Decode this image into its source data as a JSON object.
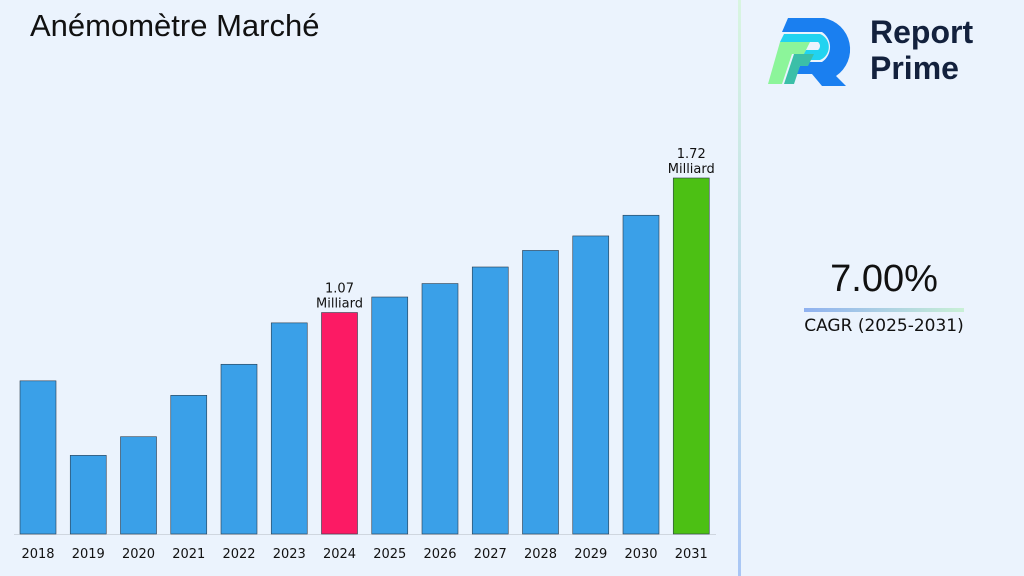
{
  "title": "Anémomètre Marché",
  "logo": {
    "line1": "Report",
    "line2": "Prime"
  },
  "cagr": {
    "value": "7.00%",
    "label": "CAGR (2025-2031)"
  },
  "colors": {
    "default_bar": "#3aa0e8",
    "highlight_2024": "#fc1a64",
    "highlight_2031": "#4cc014",
    "background": "#ebf3fd"
  },
  "chart_data": {
    "type": "bar",
    "title": "Anémomètre Marché",
    "xlabel": "",
    "ylabel": "",
    "categories": [
      "2018",
      "2019",
      "2020",
      "2021",
      "2022",
      "2023",
      "2024",
      "2025",
      "2026",
      "2027",
      "2028",
      "2029",
      "2030",
      "2031"
    ],
    "values": [
      0.74,
      0.38,
      0.47,
      0.67,
      0.82,
      1.02,
      1.07,
      1.145,
      1.21,
      1.29,
      1.37,
      1.44,
      1.54,
      1.72
    ],
    "unit": "Milliard",
    "data_labels": [
      {
        "index": 6,
        "line1": "1.07",
        "line2": "Milliard"
      },
      {
        "index": 13,
        "line1": "1.72",
        "line2": "Milliard"
      }
    ],
    "ylim": [
      0,
      1.72
    ],
    "grid": false,
    "legend": "none"
  }
}
